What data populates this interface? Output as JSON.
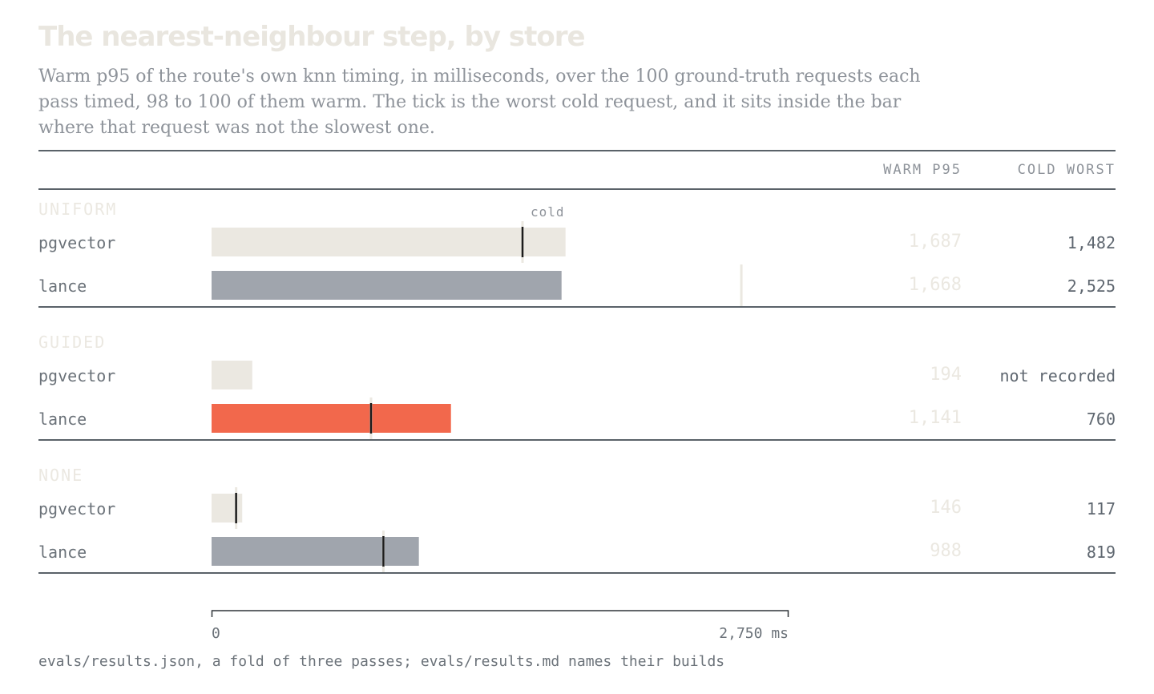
{
  "title": "The nearest-neighbour step, by store",
  "subtitle": "Warm p95 of the route's own knn timing, in milliseconds, over the 100 ground-truth requests each pass timed, 98 to 100 of them warm. The tick is the worst cold request, and it sits inside the bar where that request was not the slowest one.",
  "columns": {
    "warm": "WARM P95",
    "cold": "COLD WORST"
  },
  "cold_label": "cold",
  "axis": {
    "min_label": "0",
    "max_label": "2,750 ms"
  },
  "footer": "evals/results.json, a fold of three passes; evals/results.md names their builds",
  "colors": {
    "pgvector": "#ebe8e1",
    "lance": "#a0a5ad",
    "highlight": "#f2684c",
    "tick": "#1c1c1c",
    "tick_outside": "#ebe8e1"
  },
  "chart_data": {
    "type": "bar",
    "orientation": "horizontal",
    "xlim": [
      0,
      2750
    ],
    "unit": "ms",
    "groups": [
      {
        "name": "UNIFORM",
        "rows": [
          {
            "store": "pgvector",
            "warm_p95": 1687,
            "warm_label": "1,687",
            "cold_worst": 1482,
            "cold_label": "1,482",
            "highlight": false
          },
          {
            "store": "lance",
            "warm_p95": 1668,
            "warm_label": "1,668",
            "cold_worst": 2525,
            "cold_label": "2,525",
            "highlight": false
          }
        ]
      },
      {
        "name": "GUIDED",
        "rows": [
          {
            "store": "pgvector",
            "warm_p95": 194,
            "warm_label": "194",
            "cold_worst": null,
            "cold_label": "not recorded",
            "highlight": false
          },
          {
            "store": "lance",
            "warm_p95": 1141,
            "warm_label": "1,141",
            "cold_worst": 760,
            "cold_label": "760",
            "highlight": true
          }
        ]
      },
      {
        "name": "NONE",
        "rows": [
          {
            "store": "pgvector",
            "warm_p95": 146,
            "warm_label": "146",
            "cold_worst": 117,
            "cold_label": "117",
            "highlight": false
          },
          {
            "store": "lance",
            "warm_p95": 988,
            "warm_label": "988",
            "cold_worst": 819,
            "cold_label": "819",
            "highlight": false
          }
        ]
      }
    ]
  }
}
